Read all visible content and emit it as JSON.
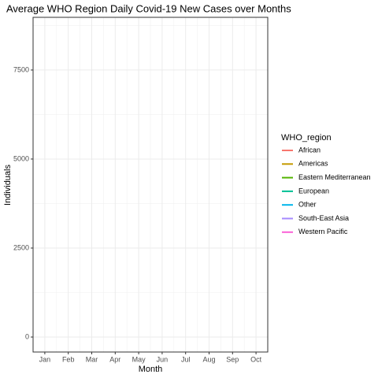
{
  "chart_data": {
    "type": "line",
    "title": "Average WHO Region Daily Covid-19 New Cases over Months",
    "x_label": "Month",
    "y_label": "Individuals",
    "legend_title": "WHO_region",
    "legend": "right",
    "grid": true,
    "categories": [
      "Jan",
      "Feb",
      "Mar",
      "Apr",
      "May",
      "Jun",
      "Jul",
      "Aug",
      "Sep",
      "Oct"
    ],
    "series": [
      {
        "name": "African",
        "color": "#F8766D",
        "values": [
          null,
          null,
          null,
          null,
          null,
          null,
          null,
          null,
          null,
          null
        ]
      },
      {
        "name": "Americas",
        "color": "#C49A00",
        "values": [
          null,
          null,
          null,
          null,
          null,
          null,
          null,
          null,
          null,
          null
        ]
      },
      {
        "name": "Eastern Mediterranean",
        "color": "#53B400",
        "values": [
          null,
          null,
          null,
          null,
          null,
          null,
          null,
          null,
          null,
          null
        ]
      },
      {
        "name": "European",
        "color": "#00C094",
        "values": [
          null,
          null,
          null,
          null,
          null,
          null,
          null,
          null,
          null,
          null
        ]
      },
      {
        "name": "Other",
        "color": "#00B6EB",
        "values": [
          null,
          null,
          null,
          null,
          null,
          null,
          null,
          null,
          null,
          null
        ]
      },
      {
        "name": "South-East Asia",
        "color": "#A58AFF",
        "values": [
          null,
          null,
          null,
          null,
          null,
          null,
          null,
          null,
          null,
          null
        ]
      },
      {
        "name": "Western Pacific",
        "color": "#FB61D7",
        "values": [
          null,
          null,
          null,
          null,
          null,
          null,
          null,
          null,
          null,
          null
        ]
      }
    ],
    "ylim": [
      -420,
      8980
    ],
    "yticks": [
      0,
      2500,
      5000,
      7500
    ]
  }
}
